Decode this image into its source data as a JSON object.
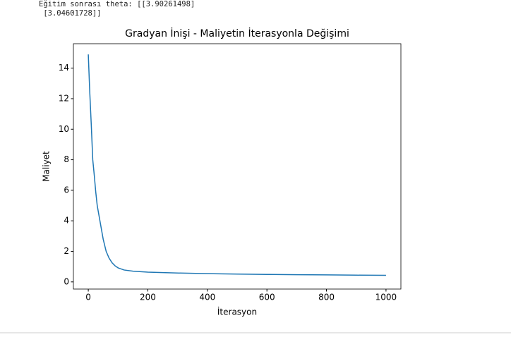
{
  "console_output": [
    "Eğitim sonrası theta: [[3.90261498]",
    " [3.04601728]]"
  ],
  "chart_data": {
    "type": "line",
    "title": "Gradyan İnişi - Maliyetin İterasyonla Değişimi",
    "x_label": "İterasyon",
    "y_label": "Maliyet",
    "x": [
      0,
      5,
      10,
      15,
      20,
      25,
      30,
      40,
      50,
      60,
      70,
      80,
      90,
      100,
      120,
      150,
      200,
      250,
      300,
      400,
      500,
      600,
      700,
      800,
      900,
      1000
    ],
    "series": [
      {
        "color": "#1f77b4",
        "values": [
          14.9,
          12.4,
          10.3,
          8.0,
          7.0,
          5.9,
          5.0,
          3.9,
          2.8,
          2.0,
          1.55,
          1.25,
          1.05,
          0.92,
          0.78,
          0.7,
          0.64,
          0.61,
          0.58,
          0.54,
          0.51,
          0.49,
          0.47,
          0.46,
          0.44,
          0.43
        ]
      }
    ],
    "xlim": [
      -50,
      1050
    ],
    "ylim": [
      -0.47,
      15.6
    ],
    "xticks": [
      0,
      200,
      400,
      600,
      800,
      1000
    ],
    "yticks": [
      0,
      2,
      4,
      6,
      8,
      10,
      12,
      14
    ]
  }
}
